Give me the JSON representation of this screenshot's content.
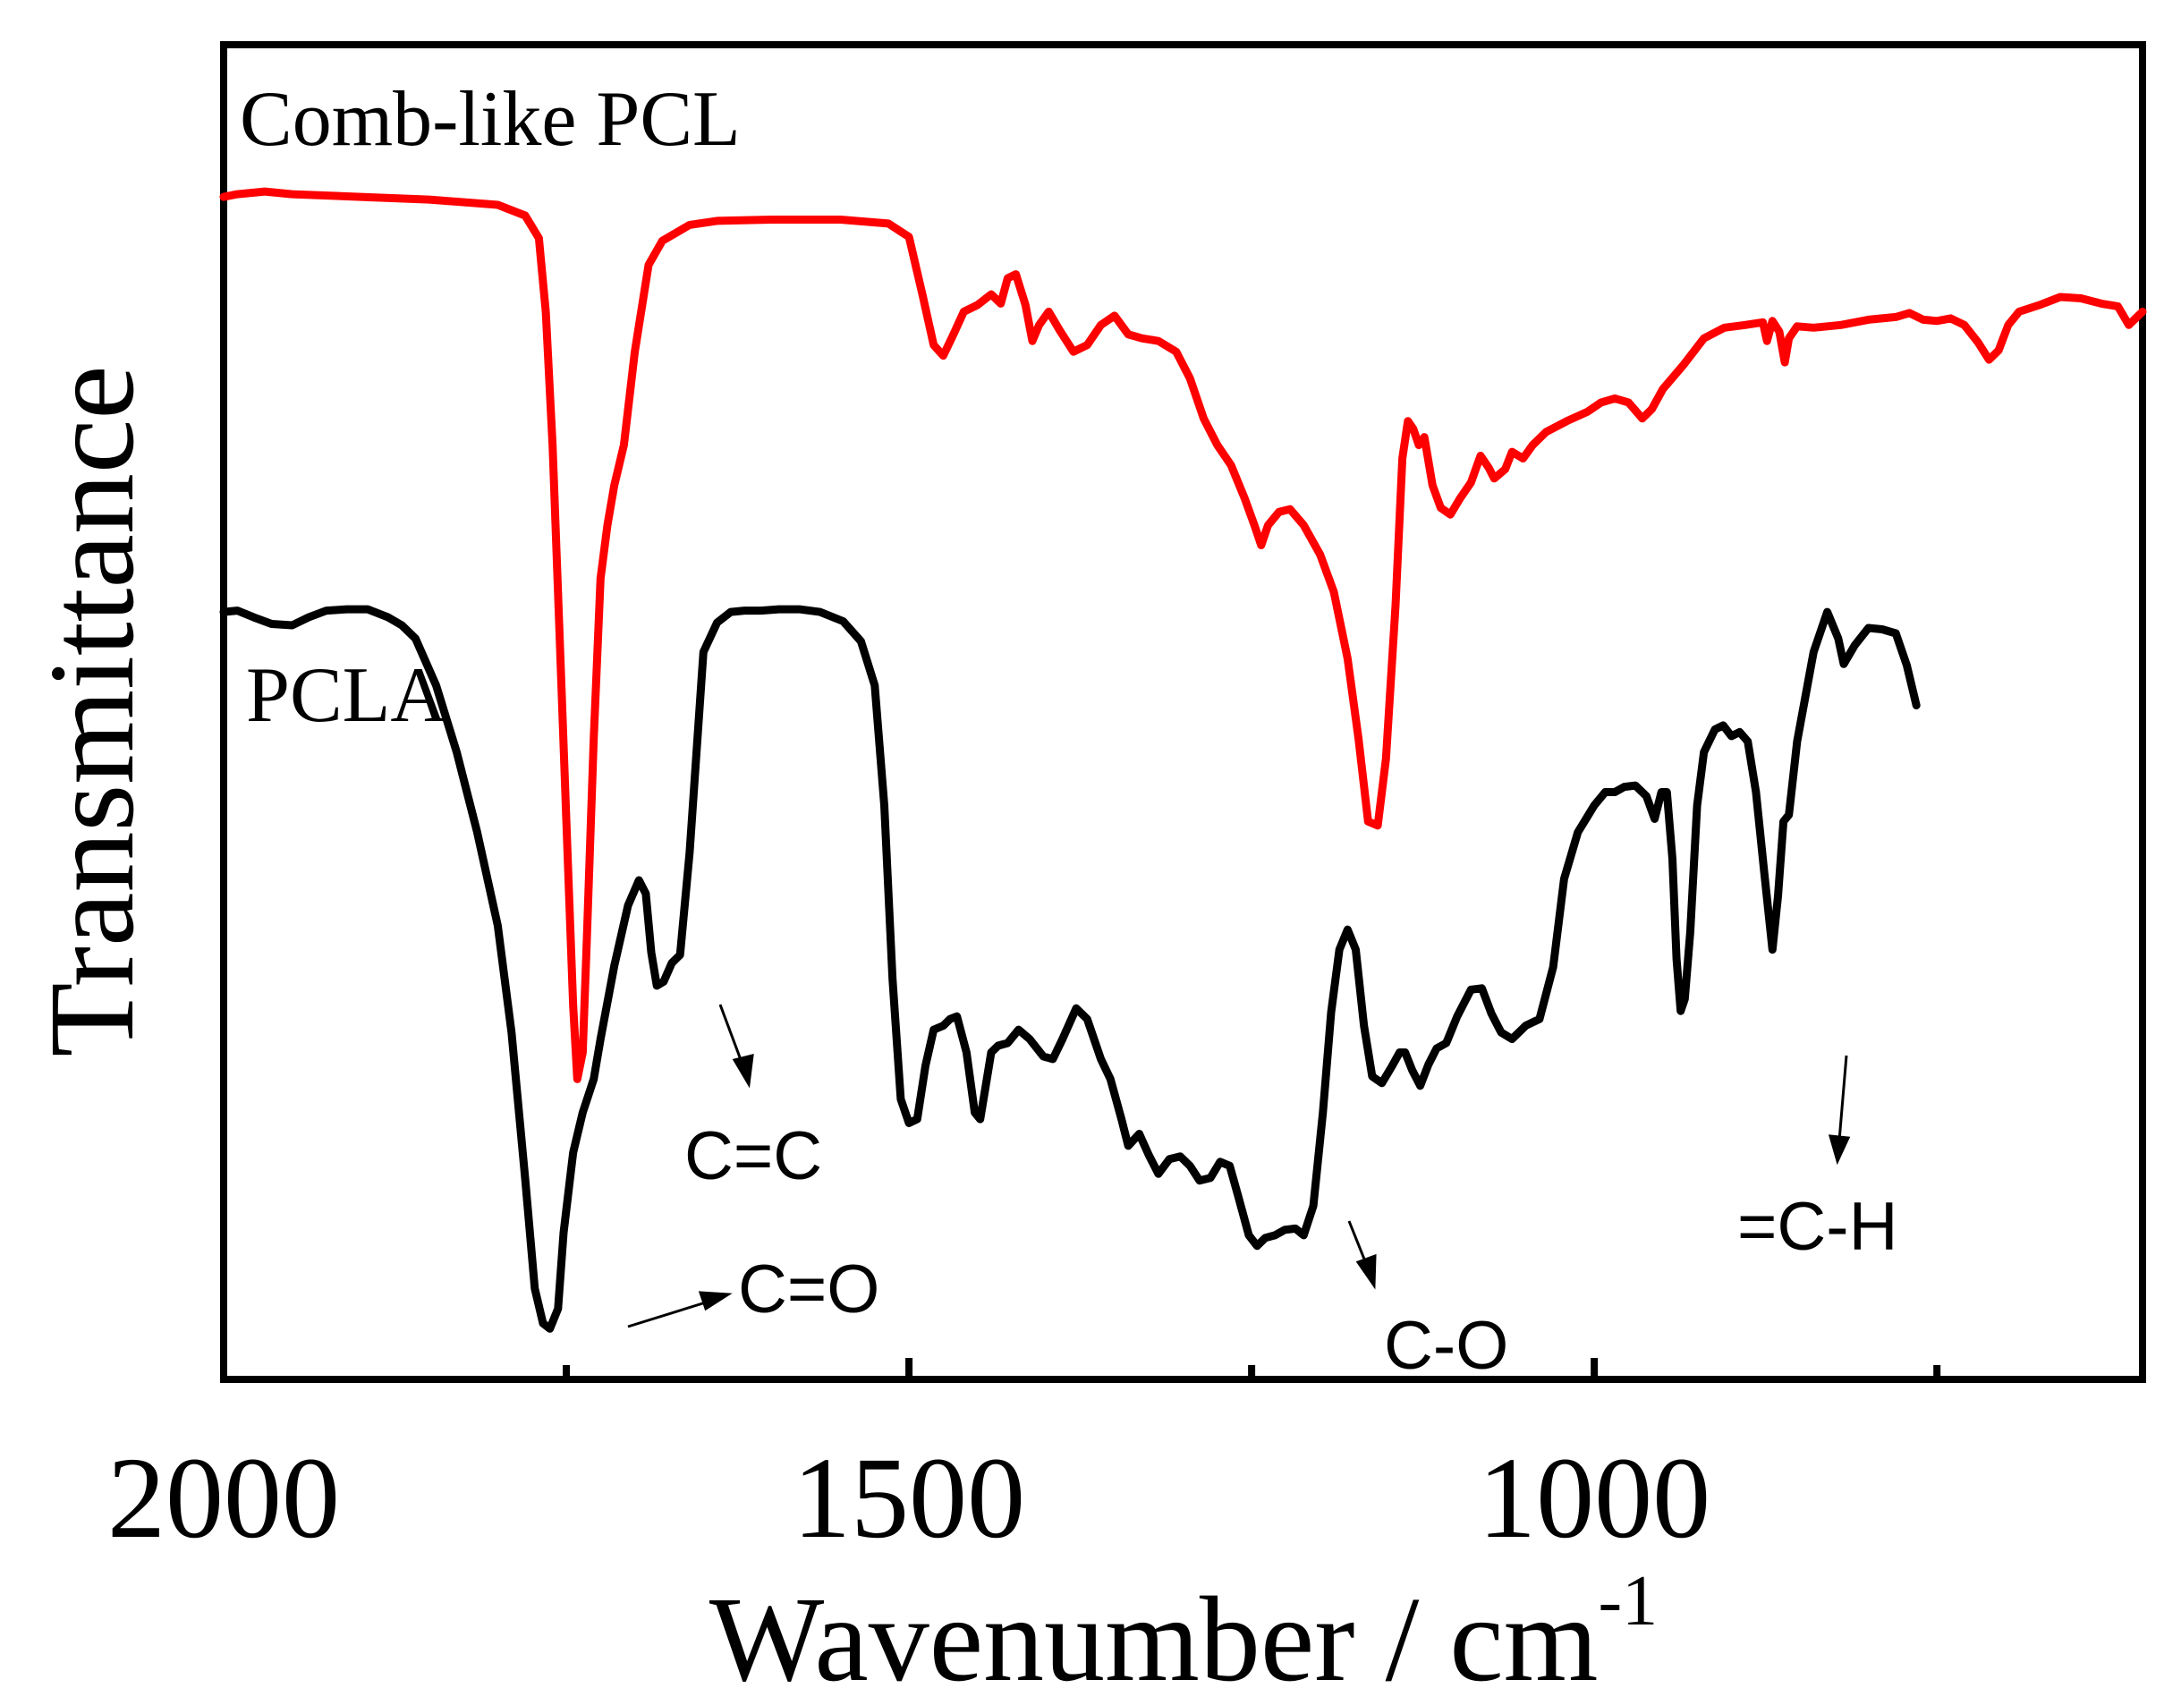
{
  "chart_data": {
    "type": "line",
    "title": "",
    "xlabel": "Wavenumber / cm",
    "xlabel_superscript": "-1",
    "ylabel": "Transmittance",
    "xlim": [
      2000,
      600
    ],
    "x_reversed": true,
    "ylim": [
      0,
      1
    ],
    "y_ticks_shown": false,
    "grid": false,
    "x_ticks_major": [
      2000,
      1500,
      1000
    ],
    "x_ticks_minor": [
      1750,
      1250,
      750
    ],
    "x_tick_labels": [
      "2000",
      "1500",
      "1000"
    ],
    "series": [
      {
        "name": "Comb-like PCL",
        "color": "#ff0000",
        "label": "Comb-like PCL",
        "points": [
          [
            2000,
            0.886
          ],
          [
            1990,
            0.888
          ],
          [
            1970,
            0.89
          ],
          [
            1950,
            0.888
          ],
          [
            1900,
            0.886
          ],
          [
            1850,
            0.884
          ],
          [
            1800,
            0.88
          ],
          [
            1780,
            0.872
          ],
          [
            1770,
            0.855
          ],
          [
            1765,
            0.8
          ],
          [
            1760,
            0.7
          ],
          [
            1755,
            0.56
          ],
          [
            1750,
            0.42
          ],
          [
            1745,
            0.28
          ],
          [
            1742,
            0.225
          ],
          [
            1738,
            0.245
          ],
          [
            1735,
            0.33
          ],
          [
            1730,
            0.48
          ],
          [
            1725,
            0.6
          ],
          [
            1720,
            0.64
          ],
          [
            1715,
            0.67
          ],
          [
            1708,
            0.7
          ],
          [
            1700,
            0.77
          ],
          [
            1690,
            0.835
          ],
          [
            1680,
            0.853
          ],
          [
            1660,
            0.865
          ],
          [
            1640,
            0.868
          ],
          [
            1600,
            0.869
          ],
          [
            1550,
            0.869
          ],
          [
            1515,
            0.866
          ],
          [
            1500,
            0.856
          ],
          [
            1490,
            0.812
          ],
          [
            1482,
            0.775
          ],
          [
            1475,
            0.767
          ],
          [
            1468,
            0.782
          ],
          [
            1460,
            0.8
          ],
          [
            1450,
            0.805
          ],
          [
            1440,
            0.813
          ],
          [
            1433,
            0.806
          ],
          [
            1428,
            0.825
          ],
          [
            1422,
            0.828
          ],
          [
            1415,
            0.805
          ],
          [
            1410,
            0.778
          ],
          [
            1405,
            0.79
          ],
          [
            1398,
            0.8
          ],
          [
            1390,
            0.786
          ],
          [
            1380,
            0.77
          ],
          [
            1370,
            0.775
          ],
          [
            1360,
            0.79
          ],
          [
            1350,
            0.797
          ],
          [
            1340,
            0.783
          ],
          [
            1330,
            0.78
          ],
          [
            1318,
            0.778
          ],
          [
            1305,
            0.77
          ],
          [
            1295,
            0.75
          ],
          [
            1285,
            0.72
          ],
          [
            1275,
            0.7
          ],
          [
            1265,
            0.685
          ],
          [
            1255,
            0.66
          ],
          [
            1248,
            0.64
          ],
          [
            1243,
            0.625
          ],
          [
            1238,
            0.64
          ],
          [
            1230,
            0.65
          ],
          [
            1222,
            0.652
          ],
          [
            1212,
            0.64
          ],
          [
            1200,
            0.618
          ],
          [
            1190,
            0.59
          ],
          [
            1180,
            0.54
          ],
          [
            1172,
            0.48
          ],
          [
            1165,
            0.418
          ],
          [
            1158,
            0.415
          ],
          [
            1152,
            0.465
          ],
          [
            1145,
            0.58
          ],
          [
            1140,
            0.69
          ],
          [
            1136,
            0.718
          ],
          [
            1132,
            0.712
          ],
          [
            1128,
            0.7
          ],
          [
            1124,
            0.706
          ],
          [
            1118,
            0.67
          ],
          [
            1112,
            0.653
          ],
          [
            1105,
            0.648
          ],
          [
            1098,
            0.66
          ],
          [
            1090,
            0.672
          ],
          [
            1083,
            0.692
          ],
          [
            1077,
            0.683
          ],
          [
            1073,
            0.675
          ],
          [
            1065,
            0.682
          ],
          [
            1060,
            0.695
          ],
          [
            1052,
            0.69
          ],
          [
            1045,
            0.7
          ],
          [
            1035,
            0.71
          ],
          [
            1020,
            0.718
          ],
          [
            1005,
            0.725
          ],
          [
            995,
            0.732
          ],
          [
            985,
            0.735
          ],
          [
            975,
            0.732
          ],
          [
            965,
            0.72
          ],
          [
            958,
            0.727
          ],
          [
            950,
            0.742
          ],
          [
            935,
            0.76
          ],
          [
            920,
            0.78
          ],
          [
            905,
            0.788
          ],
          [
            890,
            0.79
          ],
          [
            877,
            0.792
          ],
          [
            874,
            0.778
          ],
          [
            870,
            0.793
          ],
          [
            865,
            0.785
          ],
          [
            861,
            0.762
          ],
          [
            858,
            0.78
          ],
          [
            852,
            0.789
          ],
          [
            840,
            0.788
          ],
          [
            820,
            0.79
          ],
          [
            800,
            0.794
          ],
          [
            780,
            0.796
          ],
          [
            770,
            0.799
          ],
          [
            760,
            0.794
          ],
          [
            750,
            0.793
          ],
          [
            740,
            0.795
          ],
          [
            730,
            0.79
          ],
          [
            720,
            0.777
          ],
          [
            712,
            0.764
          ],
          [
            705,
            0.771
          ],
          [
            698,
            0.79
          ],
          [
            690,
            0.8
          ],
          [
            675,
            0.805
          ],
          [
            660,
            0.811
          ],
          [
            645,
            0.81
          ],
          [
            630,
            0.806
          ],
          [
            618,
            0.804
          ],
          [
            610,
            0.79
          ],
          [
            605,
            0.795
          ],
          [
            600,
            0.8
          ]
        ]
      },
      {
        "name": "PCLA",
        "color": "#000000",
        "label": "PCLA",
        "points": [
          [
            2000,
            0.575
          ],
          [
            1990,
            0.576
          ],
          [
            1978,
            0.571
          ],
          [
            1965,
            0.566
          ],
          [
            1950,
            0.565
          ],
          [
            1938,
            0.571
          ],
          [
            1925,
            0.576
          ],
          [
            1910,
            0.577
          ],
          [
            1895,
            0.577
          ],
          [
            1880,
            0.571
          ],
          [
            1870,
            0.565
          ],
          [
            1860,
            0.555
          ],
          [
            1845,
            0.52
          ],
          [
            1830,
            0.47
          ],
          [
            1815,
            0.41
          ],
          [
            1800,
            0.34
          ],
          [
            1790,
            0.26
          ],
          [
            1780,
            0.15
          ],
          [
            1773,
            0.068
          ],
          [
            1767,
            0.042
          ],
          [
            1762,
            0.038
          ],
          [
            1756,
            0.053
          ],
          [
            1752,
            0.11
          ],
          [
            1745,
            0.17
          ],
          [
            1738,
            0.2
          ],
          [
            1730,
            0.225
          ],
          [
            1725,
            0.255
          ],
          [
            1715,
            0.31
          ],
          [
            1705,
            0.355
          ],
          [
            1697,
            0.374
          ],
          [
            1692,
            0.364
          ],
          [
            1688,
            0.32
          ],
          [
            1684,
            0.295
          ],
          [
            1679,
            0.298
          ],
          [
            1673,
            0.312
          ],
          [
            1667,
            0.318
          ],
          [
            1660,
            0.395
          ],
          [
            1650,
            0.545
          ],
          [
            1640,
            0.567
          ],
          [
            1630,
            0.575
          ],
          [
            1620,
            0.576
          ],
          [
            1608,
            0.576
          ],
          [
            1595,
            0.577
          ],
          [
            1580,
            0.577
          ],
          [
            1565,
            0.575
          ],
          [
            1548,
            0.568
          ],
          [
            1535,
            0.553
          ],
          [
            1525,
            0.52
          ],
          [
            1518,
            0.43
          ],
          [
            1512,
            0.3
          ],
          [
            1506,
            0.21
          ],
          [
            1500,
            0.192
          ],
          [
            1494,
            0.195
          ],
          [
            1488,
            0.235
          ],
          [
            1482,
            0.262
          ],
          [
            1475,
            0.265
          ],
          [
            1470,
            0.27
          ],
          [
            1465,
            0.272
          ],
          [
            1458,
            0.245
          ],
          [
            1452,
            0.2
          ],
          [
            1448,
            0.195
          ],
          [
            1444,
            0.22
          ],
          [
            1440,
            0.245
          ],
          [
            1435,
            0.25
          ],
          [
            1428,
            0.252
          ],
          [
            1420,
            0.262
          ],
          [
            1412,
            0.255
          ],
          [
            1402,
            0.242
          ],
          [
            1395,
            0.24
          ],
          [
            1388,
            0.255
          ],
          [
            1378,
            0.278
          ],
          [
            1370,
            0.27
          ],
          [
            1360,
            0.24
          ],
          [
            1353,
            0.225
          ],
          [
            1345,
            0.195
          ],
          [
            1340,
            0.175
          ],
          [
            1332,
            0.184
          ],
          [
            1325,
            0.168
          ],
          [
            1318,
            0.154
          ],
          [
            1310,
            0.165
          ],
          [
            1302,
            0.167
          ],
          [
            1295,
            0.16
          ],
          [
            1288,
            0.149
          ],
          [
            1280,
            0.151
          ],
          [
            1273,
            0.163
          ],
          [
            1266,
            0.16
          ],
          [
            1260,
            0.138
          ],
          [
            1252,
            0.108
          ],
          [
            1246,
            0.1
          ],
          [
            1240,
            0.106
          ],
          [
            1233,
            0.108
          ],
          [
            1226,
            0.112
          ],
          [
            1218,
            0.113
          ],
          [
            1212,
            0.108
          ],
          [
            1205,
            0.13
          ],
          [
            1198,
            0.2
          ],
          [
            1192,
            0.275
          ],
          [
            1186,
            0.322
          ],
          [
            1180,
            0.337
          ],
          [
            1174,
            0.322
          ],
          [
            1168,
            0.265
          ],
          [
            1162,
            0.227
          ],
          [
            1155,
            0.222
          ],
          [
            1148,
            0.234
          ],
          [
            1142,
            0.245
          ],
          [
            1138,
            0.245
          ],
          [
            1133,
            0.232
          ],
          [
            1127,
            0.22
          ],
          [
            1121,
            0.236
          ],
          [
            1115,
            0.248
          ],
          [
            1108,
            0.252
          ],
          [
            1100,
            0.272
          ],
          [
            1090,
            0.292
          ],
          [
            1082,
            0.293
          ],
          [
            1075,
            0.274
          ],
          [
            1068,
            0.26
          ],
          [
            1060,
            0.255
          ],
          [
            1050,
            0.265
          ],
          [
            1040,
            0.27
          ],
          [
            1030,
            0.309
          ],
          [
            1022,
            0.375
          ],
          [
            1012,
            0.41
          ],
          [
            1000,
            0.43
          ],
          [
            992,
            0.44
          ],
          [
            985,
            0.44
          ],
          [
            978,
            0.444
          ],
          [
            970,
            0.445
          ],
          [
            962,
            0.437
          ],
          [
            956,
            0.42
          ],
          [
            951,
            0.44
          ],
          [
            947,
            0.44
          ],
          [
            943,
            0.39
          ],
          [
            940,
            0.315
          ],
          [
            937,
            0.276
          ],
          [
            934,
            0.285
          ],
          [
            930,
            0.335
          ],
          [
            925,
            0.43
          ],
          [
            920,
            0.47
          ],
          [
            912,
            0.487
          ],
          [
            906,
            0.49
          ],
          [
            900,
            0.482
          ],
          [
            894,
            0.485
          ],
          [
            888,
            0.478
          ],
          [
            882,
            0.44
          ],
          [
            876,
            0.38
          ],
          [
            870,
            0.322
          ],
          [
            866,
            0.362
          ],
          [
            862,
            0.418
          ],
          [
            858,
            0.423
          ],
          [
            852,
            0.478
          ],
          [
            840,
            0.545
          ],
          [
            830,
            0.575
          ],
          [
            822,
            0.555
          ],
          [
            818,
            0.536
          ],
          [
            810,
            0.55
          ],
          [
            800,
            0.563
          ],
          [
            790,
            0.562
          ],
          [
            780,
            0.559
          ],
          [
            772,
            0.535
          ],
          [
            765,
            0.505
          ]
        ]
      }
    ],
    "annotations": [
      {
        "text": "C=C",
        "target": [
          1673,
          0.312
        ]
      },
      {
        "text": "C=O",
        "target": [
          1762,
          0.038
        ]
      },
      {
        "text": "C-O",
        "target": [
          1178,
          0.106
        ]
      },
      {
        "text": "=C-H",
        "target": [
          931,
          0.276
        ]
      }
    ]
  },
  "colors": {
    "axis": "#000000",
    "pcl": "#ff0000",
    "pcla": "#000000"
  }
}
